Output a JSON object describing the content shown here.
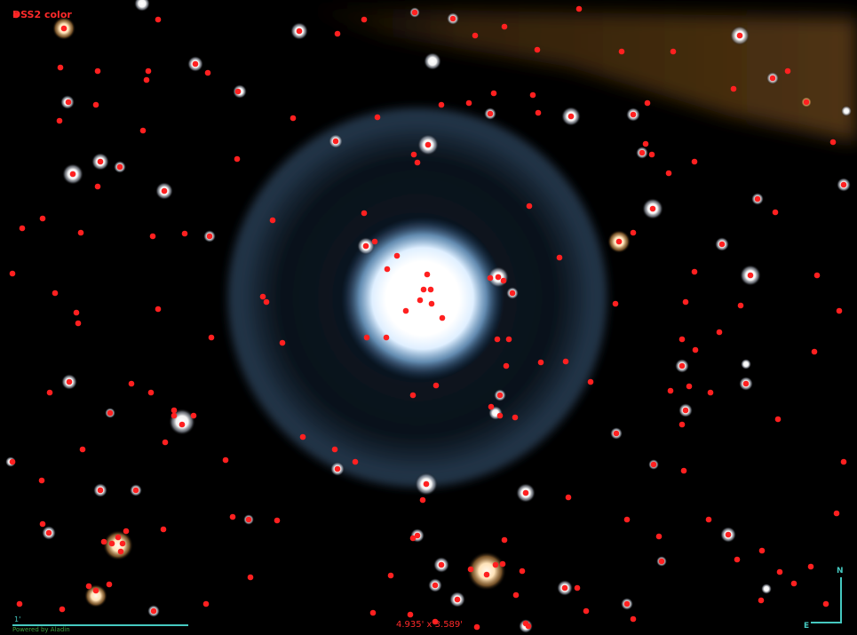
{
  "survey_label": "DSS2 color",
  "field_of_view": "4.935' x 3.589'",
  "scale_bar_label": "1'",
  "credit": "Powered by Aladin",
  "compass": {
    "north": "N",
    "east": "E"
  },
  "colors": {
    "source_marker": "#ff2020",
    "overlay_cyan": "#45c8c0",
    "nebula_shell": "#6b95bf",
    "central_star": "#ffffff",
    "background": "#000000"
  }
}
